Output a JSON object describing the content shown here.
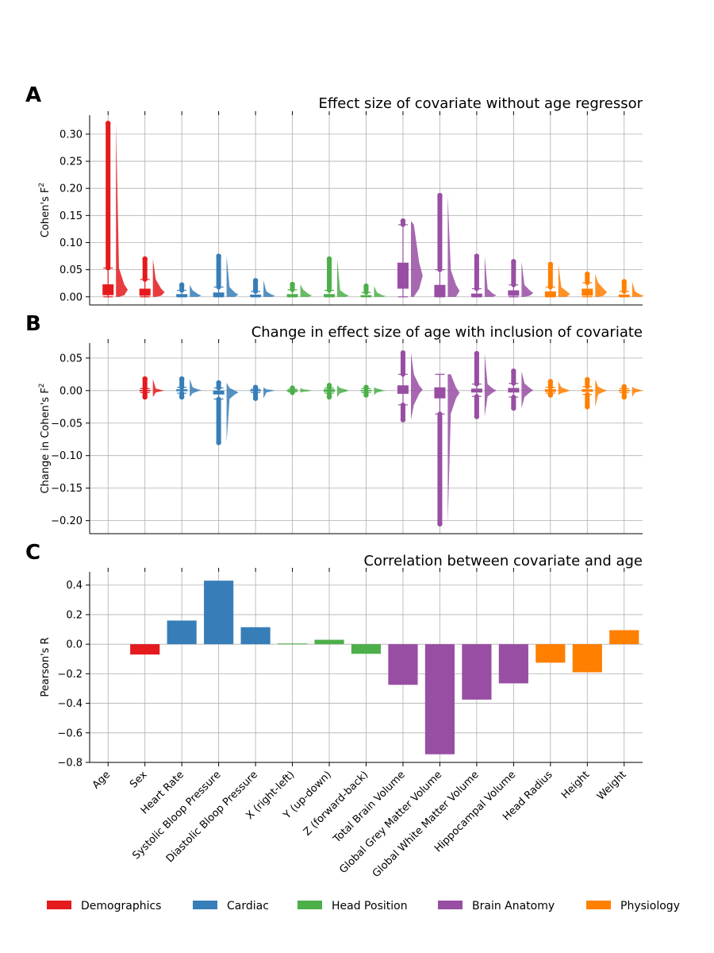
{
  "colors": {
    "Demographics": "#e41a1c",
    "Cardiac": "#377eb8",
    "Head Position": "#4daf4a",
    "Brain Anatomy": "#984ea3",
    "Physiology": "#ff7f00"
  },
  "legend": [
    "Demographics",
    "Cardiac",
    "Head Position",
    "Brain Anatomy",
    "Physiology"
  ],
  "chart_data": [
    {
      "panel": "A",
      "type": "box",
      "title": "Effect size of covariate without age regressor",
      "ylabel": "Cohen's F",
      "ylabel_sup": "2",
      "ylim": [
        -0.015,
        0.335
      ],
      "yticks": [
        "0.00",
        "0.05",
        "0.10",
        "0.15",
        "0.20",
        "0.25",
        "0.30"
      ],
      "categories": [
        "Age",
        "Sex",
        "Heart Rate",
        "Systolic Bloop Pressure",
        "Diastolic Bloop Pressure",
        "X (right-left)",
        "Y (up-down)",
        "Z (forward-back)",
        "Total Brain Volume",
        "Global Grey Matter Volume",
        "Global White Matter Volume",
        "Hippocampal Volume",
        "Head Radius",
        "Height",
        "Weight"
      ],
      "groups": [
        "Demographics",
        "Demographics",
        "Cardiac",
        "Cardiac",
        "Cardiac",
        "Head Position",
        "Head Position",
        "Head Position",
        "Brain Anatomy",
        "Brain Anatomy",
        "Brain Anatomy",
        "Brain Anatomy",
        "Physiology",
        "Physiology",
        "Physiology"
      ],
      "boxes": [
        {
          "q1": 0.003,
          "q3": 0.023,
          "wlo": 0.0,
          "whi": 0.053,
          "fmax": 0.32
        },
        {
          "q1": 0.002,
          "q3": 0.015,
          "wlo": 0.0,
          "whi": 0.032,
          "fmax": 0.07
        },
        {
          "q1": 0.0,
          "q3": 0.005,
          "wlo": 0.0,
          "whi": 0.012,
          "fmax": 0.022
        },
        {
          "q1": 0.0,
          "q3": 0.008,
          "wlo": 0.0,
          "whi": 0.018,
          "fmax": 0.075
        },
        {
          "q1": 0.0,
          "q3": 0.004,
          "wlo": 0.0,
          "whi": 0.01,
          "fmax": 0.03
        },
        {
          "q1": 0.0,
          "q3": 0.005,
          "wlo": 0.0,
          "whi": 0.013,
          "fmax": 0.023
        },
        {
          "q1": 0.0,
          "q3": 0.005,
          "wlo": 0.0,
          "whi": 0.012,
          "fmax": 0.07
        },
        {
          "q1": 0.0,
          "q3": 0.003,
          "wlo": 0.0,
          "whi": 0.008,
          "fmax": 0.02
        },
        {
          "q1": 0.015,
          "q3": 0.063,
          "wlo": 0.0,
          "whi": 0.133,
          "fmax": 0.14
        },
        {
          "q1": 0.0,
          "q3": 0.022,
          "wlo": 0.0,
          "whi": 0.05,
          "fmax": 0.187
        },
        {
          "q1": 0.0,
          "q3": 0.006,
          "wlo": 0.0,
          "whi": 0.015,
          "fmax": 0.075
        },
        {
          "q1": 0.002,
          "q3": 0.012,
          "wlo": 0.0,
          "whi": 0.022,
          "fmax": 0.065
        },
        {
          "q1": 0.0,
          "q3": 0.01,
          "wlo": 0.0,
          "whi": 0.018,
          "fmax": 0.06
        },
        {
          "q1": 0.002,
          "q3": 0.015,
          "wlo": 0.0,
          "whi": 0.026,
          "fmax": 0.042
        },
        {
          "q1": 0.0,
          "q3": 0.004,
          "wlo": 0.0,
          "whi": 0.01,
          "fmax": 0.028
        }
      ],
      "grid": true
    },
    {
      "panel": "B",
      "type": "box",
      "title": "Change in effect size of age with inclusion of covariate",
      "ylabel": "Change in Cohen's F",
      "ylabel_sup": "2",
      "ylim": [
        -0.22,
        0.073
      ],
      "yticks": [
        "0.05",
        "0.00",
        "−0.05",
        "−0.10",
        "−0.15",
        "−0.20"
      ],
      "categories": [
        "Age",
        "Sex",
        "Heart Rate",
        "Systolic Bloop Pressure",
        "Diastolic Bloop Pressure",
        "X (right-left)",
        "Y (up-down)",
        "Z (forward-back)",
        "Total Brain Volume",
        "Global Grey Matter Volume",
        "Global White Matter Volume",
        "Hippocampal Volume",
        "Head Radius",
        "Height",
        "Weight"
      ],
      "groups": [
        "Demographics",
        "Demographics",
        "Cardiac",
        "Cardiac",
        "Cardiac",
        "Head Position",
        "Head Position",
        "Head Position",
        "Brain Anatomy",
        "Brain Anatomy",
        "Brain Anatomy",
        "Brain Anatomy",
        "Physiology",
        "Physiology",
        "Physiology"
      ],
      "boxes": [
        null,
        {
          "q1": -0.001,
          "q3": 0.001,
          "wlo": -0.003,
          "whi": 0.003,
          "fmin": -0.01,
          "fmax": 0.018
        },
        {
          "q1": -0.001,
          "q3": 0.002,
          "wlo": -0.004,
          "whi": 0.005,
          "fmin": -0.01,
          "fmax": 0.018
        },
        {
          "q1": -0.006,
          "q3": 0.0,
          "wlo": -0.013,
          "whi": 0.004,
          "fmin": -0.08,
          "fmax": 0.012
        },
        {
          "q1": -0.001,
          "q3": 0.001,
          "wlo": -0.003,
          "whi": 0.002,
          "fmin": -0.012,
          "fmax": 0.005
        },
        {
          "q1": -0.001,
          "q3": 0.001,
          "wlo": -0.002,
          "whi": 0.002,
          "fmin": -0.003,
          "fmax": 0.004
        },
        {
          "q1": -0.002,
          "q3": 0.002,
          "wlo": -0.004,
          "whi": 0.004,
          "fmin": -0.01,
          "fmax": 0.008
        },
        {
          "q1": -0.001,
          "q3": 0.001,
          "wlo": -0.003,
          "whi": 0.003,
          "fmin": -0.007,
          "fmax": 0.005
        },
        {
          "q1": -0.005,
          "q3": 0.008,
          "wlo": -0.022,
          "whi": 0.025,
          "fmin": -0.045,
          "fmax": 0.058
        },
        {
          "q1": -0.012,
          "q3": 0.005,
          "wlo": -0.036,
          "whi": 0.025,
          "fmin": -0.205,
          "fmax": 0.025
        },
        {
          "q1": -0.003,
          "q3": 0.003,
          "wlo": -0.009,
          "whi": 0.01,
          "fmin": -0.04,
          "fmax": 0.057
        },
        {
          "q1": -0.003,
          "q3": 0.004,
          "wlo": -0.01,
          "whi": 0.011,
          "fmin": -0.027,
          "fmax": 0.03
        },
        {
          "q1": -0.002,
          "q3": 0.002,
          "wlo": -0.004,
          "whi": 0.005,
          "fmin": -0.007,
          "fmax": 0.014
        },
        {
          "q1": -0.002,
          "q3": 0.002,
          "wlo": -0.006,
          "whi": 0.006,
          "fmin": -0.025,
          "fmax": 0.017
        },
        {
          "q1": -0.001,
          "q3": 0.001,
          "wlo": -0.003,
          "whi": 0.003,
          "fmin": -0.01,
          "fmax": 0.006
        }
      ],
      "grid": true
    },
    {
      "panel": "C",
      "type": "bar",
      "title": "Correlation between covariate and age",
      "ylabel": "Pearson's R",
      "ylim": [
        -0.8,
        0.49
      ],
      "yticks": [
        "0.4",
        "0.2",
        "0.0",
        "−0.2",
        "−0.4",
        "−0.6",
        "−0.8"
      ],
      "categories": [
        "Age",
        "Sex",
        "Heart Rate",
        "Systolic Bloop Pressure",
        "Diastolic Bloop Pressure",
        "X (right-left)",
        "Y (up-down)",
        "Z (forward-back)",
        "Total Brain Volume",
        "Global Grey Matter Volume",
        "Global White Matter Volume",
        "Hippocampal Volume",
        "Head Radius",
        "Height",
        "Weight"
      ],
      "groups": [
        "Demographics",
        "Demographics",
        "Cardiac",
        "Cardiac",
        "Cardiac",
        "Head Position",
        "Head Position",
        "Head Position",
        "Brain Anatomy",
        "Brain Anatomy",
        "Brain Anatomy",
        "Brain Anatomy",
        "Physiology",
        "Physiology",
        "Physiology"
      ],
      "values": [
        null,
        -0.07,
        0.16,
        0.43,
        0.115,
        0.005,
        0.03,
        -0.065,
        -0.275,
        -0.745,
        -0.375,
        -0.265,
        -0.125,
        -0.19,
        0.095
      ],
      "grid": true
    }
  ]
}
